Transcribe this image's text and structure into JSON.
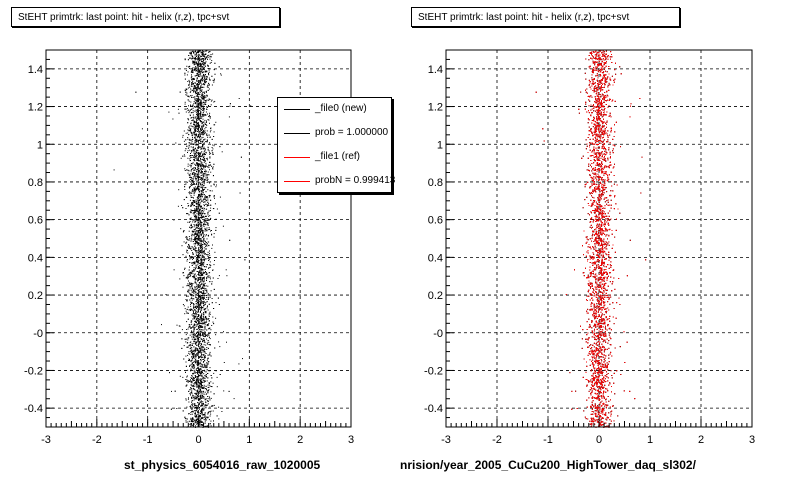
{
  "panels": [
    {
      "title": "StEHT primtrk: last point: hit - helix (r,z), tpc+svt",
      "xlabel": "st_physics_6054016_raw_1020005",
      "marker_color": "#000000"
    },
    {
      "title": "StEHT primtrk: last point: hit - helix (r,z), tpc+svt",
      "xlabel": "nrision/year_2005_CuCu200_HighTower_daq_sl302/",
      "marker_color": "#ff0000"
    }
  ],
  "legend": {
    "entries": [
      {
        "label": "_file0 (new)",
        "color": "#000000"
      },
      {
        "label": "prob = 1.000000",
        "color": "#000000"
      },
      {
        "label": "_file1 (ref)",
        "color": "#ff0000"
      },
      {
        "label": "probN = 0.999413",
        "color": "#ff0000"
      }
    ]
  },
  "footer": "",
  "chart_data": [
    {
      "type": "scatter",
      "title": "StEHT primtrk: last point: hit - helix (r,z), tpc+svt",
      "xlabel": "st_physics_6054016_raw_1020005",
      "ylabel": "",
      "xlim": [
        -3,
        3
      ],
      "ylim": [
        -0.5,
        1.5
      ],
      "x_ticks": [
        -3,
        -2,
        -1,
        0,
        1,
        2,
        3
      ],
      "x_tick_labels": [
        "-3",
        "-2",
        "-1",
        "0",
        "1",
        "2",
        "3"
      ],
      "y_ticks": [
        -0.4,
        -0.2,
        0,
        0.2,
        0.4,
        0.6,
        0.8,
        1.0,
        1.2,
        1.4
      ],
      "y_tick_labels": [
        "-0.4",
        "-0.2",
        "-0",
        "0.2",
        "0.4",
        "0.6",
        "0.8",
        "1",
        "1.2",
        "1.4"
      ],
      "grid": true,
      "series": [
        {
          "color": "#000000",
          "x_center": 0.0,
          "x_spread": 0.12,
          "y_range": [
            -0.5,
            1.5
          ]
        }
      ]
    },
    {
      "type": "scatter",
      "title": "StEHT primtrk: last point: hit - helix (r,z), tpc+svt",
      "xlabel": "nrision/year_2005_CuCu200_HighTower_daq_sl302/",
      "ylabel": "",
      "xlim": [
        -3,
        3
      ],
      "ylim": [
        -0.5,
        1.5
      ],
      "x_ticks": [
        -3,
        -2,
        -1,
        0,
        1,
        2,
        3
      ],
      "x_tick_labels": [
        "-3",
        "-2",
        "-1",
        "0",
        "1",
        "2",
        "3"
      ],
      "y_ticks": [
        -0.4,
        -0.2,
        0,
        0.2,
        0.4,
        0.6,
        0.8,
        1.0,
        1.2,
        1.4
      ],
      "y_tick_labels": [
        "-0.4",
        "-0.2",
        "-0",
        "0.2",
        "0.4",
        "0.6",
        "0.8",
        "1",
        "1.2",
        "1.4"
      ],
      "grid": true,
      "series": [
        {
          "color": "#000000",
          "x_center": 0.0,
          "x_spread": 0.12,
          "y_range": [
            -0.5,
            1.5
          ]
        },
        {
          "color": "#ff0000",
          "x_center": 0.0,
          "x_spread": 0.12,
          "y_range": [
            -0.5,
            1.5
          ]
        }
      ]
    }
  ]
}
